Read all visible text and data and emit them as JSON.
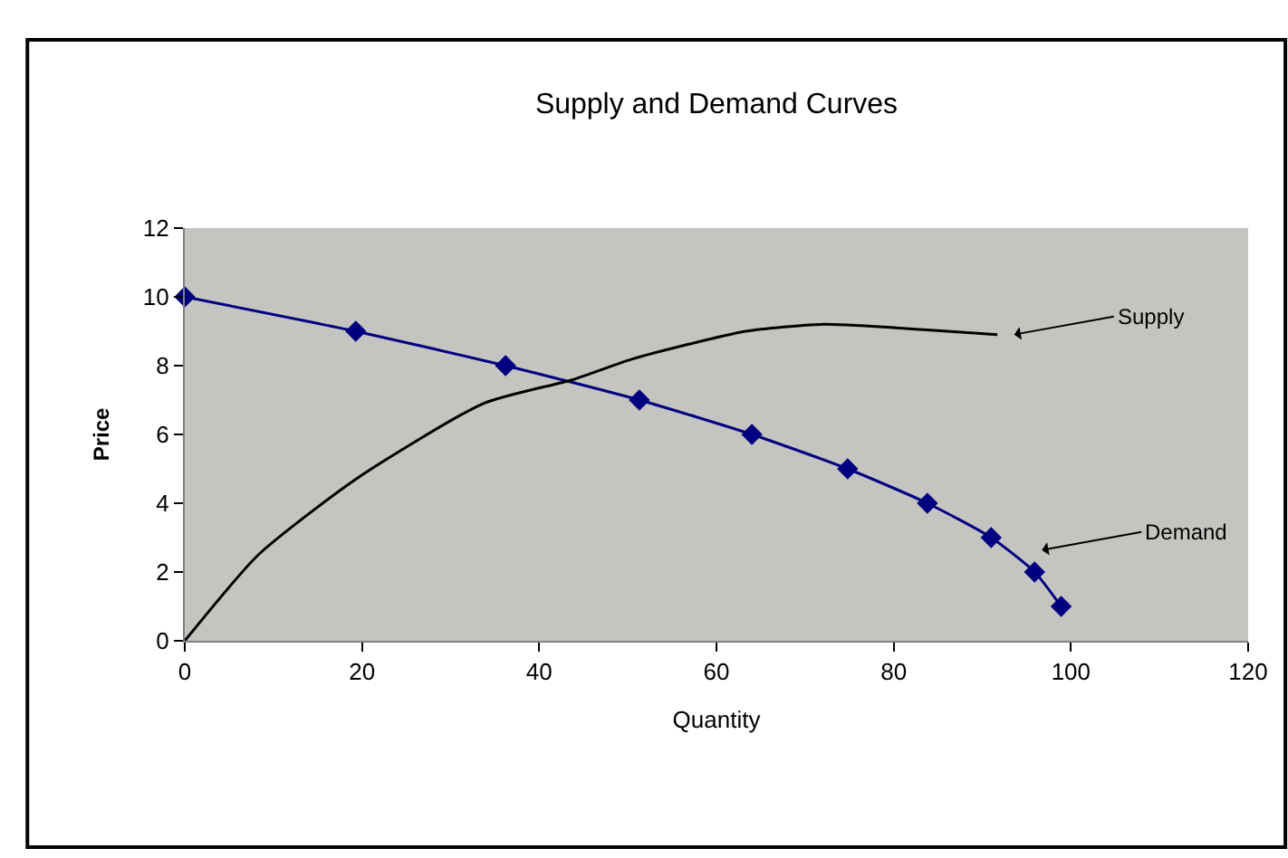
{
  "chart_data": {
    "type": "line",
    "title": "Supply and Demand Curves",
    "xlabel": "Quantity",
    "ylabel": "Price",
    "xlim": [
      0,
      120
    ],
    "xticks": [
      0,
      20,
      40,
      60,
      80,
      100,
      120
    ],
    "ylim": [
      0,
      12
    ],
    "yticks": [
      0,
      2,
      4,
      6,
      8,
      10,
      12
    ],
    "grid": false,
    "legend": false,
    "line_style": "solid",
    "series": [
      {
        "color": "#000080",
        "marker": "diamond",
        "x": [
          0,
          19.3,
          36.2,
          51.3,
          64.0,
          74.8,
          83.8,
          91.0,
          95.9,
          98.9
        ],
        "values": [
          10,
          9,
          8,
          7,
          6,
          5,
          4,
          3,
          2,
          1
        ]
      },
      {
        "color": "#000000",
        "marker": "none",
        "x": [
          0,
          8.3,
          19.3,
          33.7,
          43.9,
          50.6,
          63.3,
          71.8,
          80.3,
          91.7
        ],
        "values": [
          0,
          2.5,
          4.7,
          6.9,
          7.6,
          8.2,
          9.0,
          9.2,
          9.1,
          8.9
        ]
      }
    ],
    "annotations": [
      "Supply",
      "Demand"
    ]
  }
}
